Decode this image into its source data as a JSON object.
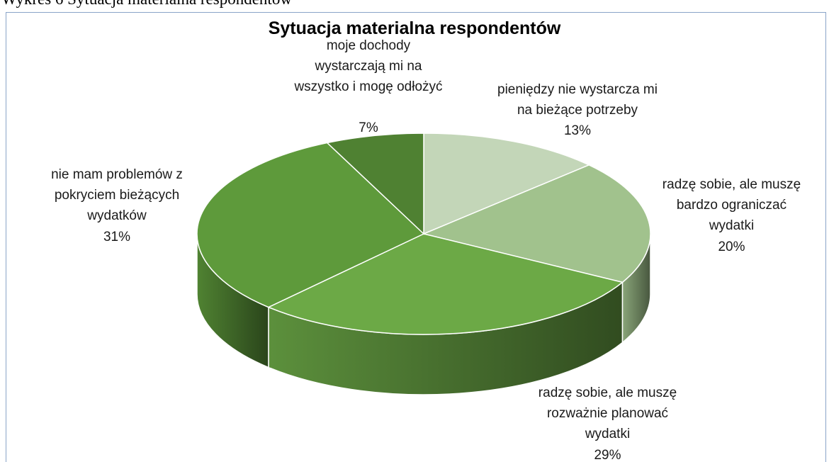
{
  "caption": "Wykres 6 Sytuacja materialna respondentów",
  "chart_data": {
    "type": "pie3d",
    "title": "Sytuacja materialna respondentów",
    "categories": [
      "pieniędzy nie wystarcza mi na bieżące potrzeby",
      "radzę sobie, ale muszę bardzo ograniczać wydatki",
      "radzę sobie, ale muszę rozważnie planować wydatki",
      "nie mam problemów z pokryciem bieżących wydatków",
      "moje dochody wystarczają mi na wszystko i mogę odłożyć"
    ],
    "values": [
      13,
      20,
      29,
      31,
      7
    ],
    "value_labels": [
      "13%",
      "20%",
      "29%",
      "31%",
      "7%"
    ],
    "colors": [
      "#c3d6b8",
      "#a1c28d",
      "#6ca946",
      "#5e9a3b",
      "#4f8132"
    ]
  }
}
